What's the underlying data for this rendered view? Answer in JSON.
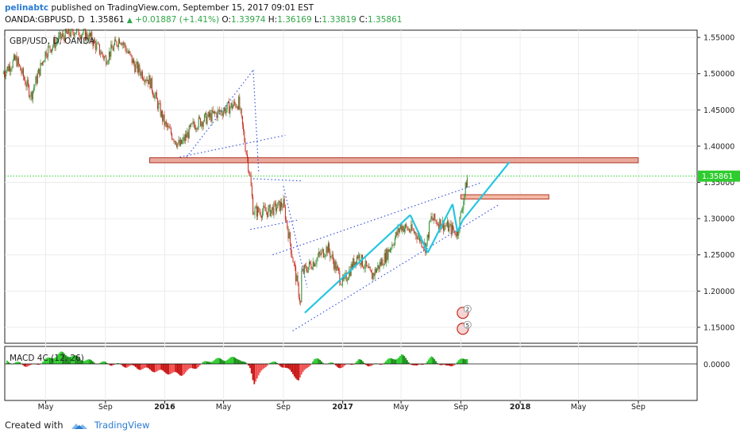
{
  "header": {
    "author": "pelinabtc",
    "published_text": "published on TradingView.com, September 15, 2017 09:01 EST",
    "symbol": "OANDA:GBPUSD, D",
    "last": "1.35861",
    "change": "+0.01887 (+1.41%)",
    "o_label": "O:",
    "o_value": "1.33974",
    "h_label": "H:",
    "h_value": "1.36169",
    "l_label": "L:",
    "l_value": "1.33819",
    "c_label": "C:",
    "c_value": "1.35861"
  },
  "footer": {
    "created_with": "Created with",
    "brand": "TradingView"
  },
  "chart_data": {
    "type": "candlestick",
    "title": "GBP/USD, D, OANDA",
    "price_axis": {
      "ticks": [
        "1.55000",
        "1.50000",
        "1.45000",
        "1.40000",
        "1.35000",
        "1.30000",
        "1.25000",
        "1.20000",
        "1.15000"
      ],
      "tick_values": [
        1.55,
        1.5,
        1.45,
        1.4,
        1.35,
        1.3,
        1.25,
        1.2,
        1.15
      ],
      "range": [
        1.128,
        1.56
      ]
    },
    "time_axis": {
      "labels": [
        "May",
        "Sep",
        "2016",
        "May",
        "Sep",
        "2017",
        "May",
        "Sep",
        "2018",
        "May",
        "Sep"
      ],
      "dates": [
        "2015-05",
        "2015-09",
        "2016-01",
        "2016-05",
        "2016-09",
        "2017-01",
        "2017-05",
        "2017-09",
        "2018-01",
        "2018-05",
        "2018-09"
      ],
      "bold": [
        "2016",
        "2017",
        "2018"
      ]
    },
    "current_price": {
      "value": 1.35861,
      "label": "1.35861",
      "color": "#2ecc2e"
    },
    "price_path": [
      {
        "date": "2015-02",
        "price": 1.5
      },
      {
        "date": "2015-03",
        "price": 1.52
      },
      {
        "date": "2015-04",
        "price": 1.47
      },
      {
        "date": "2015-05",
        "price": 1.53
      },
      {
        "date": "2015-06",
        "price": 1.55
      },
      {
        "date": "2015-07",
        "price": 1.56
      },
      {
        "date": "2015-08",
        "price": 1.55
      },
      {
        "date": "2015-09",
        "price": 1.52
      },
      {
        "date": "2015-10",
        "price": 1.55
      },
      {
        "date": "2015-11",
        "price": 1.51
      },
      {
        "date": "2015-12",
        "price": 1.49
      },
      {
        "date": "2016-01",
        "price": 1.43
      },
      {
        "date": "2016-02",
        "price": 1.4
      },
      {
        "date": "2016-03",
        "price": 1.43
      },
      {
        "date": "2016-04",
        "price": 1.44
      },
      {
        "date": "2016-05",
        "price": 1.45
      },
      {
        "date": "2016-06",
        "price": 1.46
      },
      {
        "date": "2016-06-24",
        "price": 1.36
      },
      {
        "date": "2016-07",
        "price": 1.31
      },
      {
        "date": "2016-08",
        "price": 1.31
      },
      {
        "date": "2016-09",
        "price": 1.32
      },
      {
        "date": "2016-10-07",
        "price": 1.18
      },
      {
        "date": "2016-10",
        "price": 1.22
      },
      {
        "date": "2016-11",
        "price": 1.24
      },
      {
        "date": "2016-12",
        "price": 1.26
      },
      {
        "date": "2017-01",
        "price": 1.21
      },
      {
        "date": "2017-02",
        "price": 1.25
      },
      {
        "date": "2017-03",
        "price": 1.22
      },
      {
        "date": "2017-04",
        "price": 1.25
      },
      {
        "date": "2017-05",
        "price": 1.29
      },
      {
        "date": "2017-06",
        "price": 1.28
      },
      {
        "date": "2017-06-21",
        "price": 1.26
      },
      {
        "date": "2017-07",
        "price": 1.3
      },
      {
        "date": "2017-08",
        "price": 1.29
      },
      {
        "date": "2017-08-25",
        "price": 1.28
      },
      {
        "date": "2017-09-15",
        "price": 1.3586
      }
    ],
    "annotations": {
      "resistance_zone": {
        "date_start": "2015-12",
        "date_end": "2018-09",
        "price_low": 1.377,
        "price_high": 1.384,
        "color": "#e8a89c",
        "border": "#b23a2a"
      },
      "small_zone": {
        "date_start": "2017-09",
        "date_end": "2018-03",
        "price_low": 1.327,
        "price_high": 1.333,
        "color": "#f3b9a5",
        "border": "#b23a2a"
      },
      "cyan_wave": [
        {
          "date": "2016-10-15",
          "price": 1.17
        },
        {
          "date": "2017-05-20",
          "price": 1.305
        },
        {
          "date": "2017-06-25",
          "price": 1.253
        },
        {
          "date": "2017-08-15",
          "price": 1.32
        },
        {
          "date": "2017-08-25",
          "price": 1.282
        },
        {
          "date": "2017-09-05",
          "price": 1.298
        },
        {
          "date": "2017-12-10",
          "price": 1.378
        }
      ],
      "color_cyan": "#27c6e0",
      "dotted_lines_color": "#3a55e0",
      "event_badges": [
        "2",
        "5"
      ]
    },
    "indicator": {
      "name": "MACD 4C",
      "params": [
        "12",
        "26"
      ],
      "zero_label": "0.0000",
      "colors": {
        "pos": "#2ecc2e",
        "neg": "#dd2020"
      },
      "histogram": [
        {
          "date": "2015-02",
          "value": 0.3
        },
        {
          "date": "2015-04",
          "value": -0.2
        },
        {
          "date": "2015-06",
          "value": 0.9
        },
        {
          "date": "2015-08",
          "value": 0.2
        },
        {
          "date": "2015-10",
          "value": -0.1
        },
        {
          "date": "2015-12",
          "value": -0.5
        },
        {
          "date": "2016-02",
          "value": -0.9
        },
        {
          "date": "2016-04",
          "value": 0.3
        },
        {
          "date": "2016-06",
          "value": 0.5
        },
        {
          "date": "2016-06-24",
          "value": -0.4
        },
        {
          "date": "2016-07",
          "value": -1.6
        },
        {
          "date": "2016-08",
          "value": 0.2
        },
        {
          "date": "2016-09",
          "value": -0.2
        },
        {
          "date": "2016-10",
          "value": -1.3
        },
        {
          "date": "2016-11",
          "value": 0.4
        },
        {
          "date": "2017-01",
          "value": -0.3
        },
        {
          "date": "2017-02",
          "value": 0.3
        },
        {
          "date": "2017-03",
          "value": -0.2
        },
        {
          "date": "2017-05",
          "value": 0.7
        },
        {
          "date": "2017-06",
          "value": -0.3
        },
        {
          "date": "2017-07",
          "value": 0.5
        },
        {
          "date": "2017-08",
          "value": -0.3
        },
        {
          "date": "2017-09-15",
          "value": 0.6
        }
      ]
    }
  }
}
